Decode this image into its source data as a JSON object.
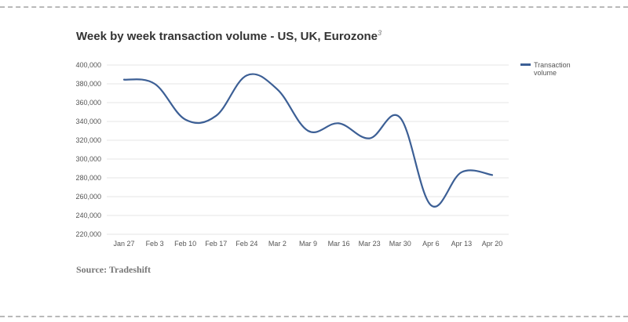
{
  "page": {
    "title": "Week by week transaction volume - US, UK, Eurozone",
    "title_note": "3",
    "source": "Source: Tradeshift"
  },
  "colors": {
    "line": "#3c5f95",
    "grid": "#e4e4e4",
    "text": "#555555"
  },
  "chart_data": {
    "type": "line",
    "title": "Week by week transaction volume - US, UK, Eurozone",
    "xlabel": "",
    "ylabel": "",
    "categories": [
      "Jan 27",
      "Feb 3",
      "Feb 10",
      "Feb 17",
      "Feb 24",
      "Mar 2",
      "Mar 9",
      "Mar 16",
      "Mar 23",
      "Mar 30",
      "Apr 6",
      "Apr 13",
      "Apr 20"
    ],
    "ylim": [
      220000,
      400000
    ],
    "yticks": [
      220000,
      240000,
      260000,
      280000,
      300000,
      320000,
      340000,
      360000,
      380000,
      400000
    ],
    "ytick_labels": [
      "220,000",
      "240,000",
      "260,000",
      "280,000",
      "300,000",
      "320,000",
      "340,000",
      "360,000",
      "380,000",
      "400,000"
    ],
    "series": [
      {
        "name": "Transaction volume",
        "values": [
          384500,
          380000,
          342000,
          346000,
          389000,
          374000,
          330000,
          338000,
          322000,
          344000,
          251000,
          286000,
          283000
        ]
      }
    ],
    "legend": {
      "position": "right",
      "label_lines": [
        "Transaction",
        "volume"
      ]
    },
    "grid": true
  }
}
